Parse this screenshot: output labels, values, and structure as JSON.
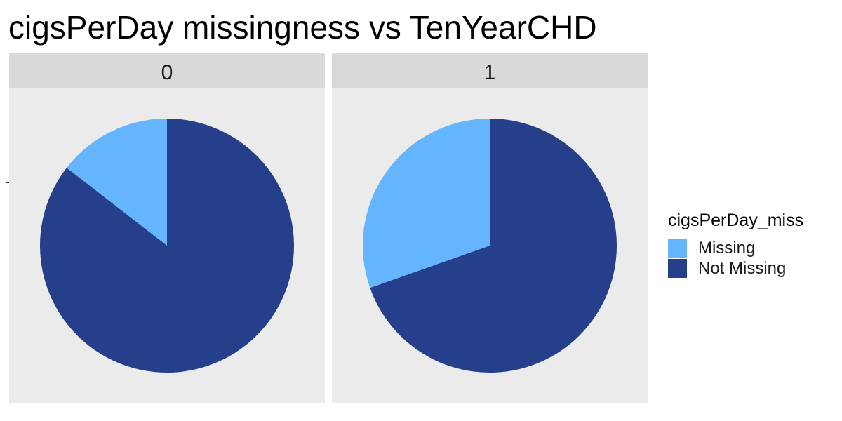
{
  "colors": {
    "Missing": "#64b5fe",
    "Not Missing": "#253f8a"
  },
  "chart_data": {
    "type": "pie",
    "title": "cigsPerDay missingness vs TenYearCHD",
    "legend_title": "cigsPerDay_miss",
    "legend_position": "right",
    "legend_entries": [
      "Missing",
      "Not Missing"
    ],
    "facets": [
      {
        "label": "0",
        "slices": [
          {
            "name": "Missing",
            "value": 0.145
          },
          {
            "name": "Not Missing",
            "value": 0.855
          }
        ]
      },
      {
        "label": "1",
        "slices": [
          {
            "name": "Missing",
            "value": 0.304
          },
          {
            "name": "Not Missing",
            "value": 0.696
          }
        ]
      }
    ]
  }
}
